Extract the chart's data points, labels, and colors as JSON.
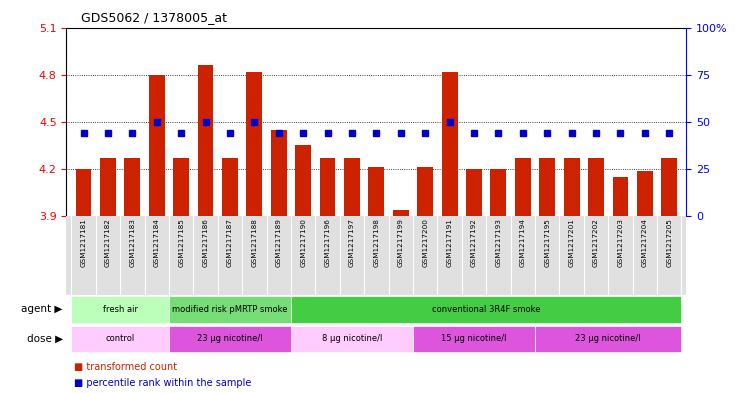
{
  "title": "GDS5062 / 1378005_at",
  "samples": [
    "GSM1217181",
    "GSM1217182",
    "GSM1217183",
    "GSM1217184",
    "GSM1217185",
    "GSM1217186",
    "GSM1217187",
    "GSM1217188",
    "GSM1217189",
    "GSM1217190",
    "GSM1217196",
    "GSM1217197",
    "GSM1217198",
    "GSM1217199",
    "GSM1217200",
    "GSM1217191",
    "GSM1217192",
    "GSM1217193",
    "GSM1217194",
    "GSM1217195",
    "GSM1217201",
    "GSM1217202",
    "GSM1217203",
    "GSM1217204",
    "GSM1217205"
  ],
  "bar_values": [
    4.2,
    4.27,
    4.27,
    4.8,
    4.27,
    4.86,
    4.27,
    4.82,
    4.45,
    4.35,
    4.27,
    4.27,
    4.21,
    3.94,
    4.21,
    4.82,
    4.2,
    4.2,
    4.27,
    4.27,
    4.27,
    4.27,
    4.15,
    4.19,
    4.27
  ],
  "percentile_values": [
    44,
    44,
    44,
    50,
    44,
    50,
    44,
    50,
    44,
    44,
    44,
    44,
    44,
    44,
    44,
    50,
    44,
    44,
    44,
    44,
    44,
    44,
    44,
    44,
    44
  ],
  "y_min": 3.9,
  "y_max": 5.1,
  "y_ticks": [
    3.9,
    4.2,
    4.5,
    4.8,
    5.1
  ],
  "y2_ticks": [
    0,
    25,
    50,
    75,
    100
  ],
  "bar_color": "#cc2200",
  "percentile_color": "#0000cc",
  "agent_regions": [
    {
      "label": "fresh air",
      "start": 0,
      "end": 4,
      "color": "#bbffbb"
    },
    {
      "label": "modified risk pMRTP smoke",
      "start": 4,
      "end": 9,
      "color": "#77dd77"
    },
    {
      "label": "conventional 3R4F smoke",
      "start": 9,
      "end": 25,
      "color": "#44cc44"
    }
  ],
  "dose_regions": [
    {
      "label": "control",
      "start": 0,
      "end": 4,
      "color": "#ffccff"
    },
    {
      "label": "23 μg nicotine/l",
      "start": 4,
      "end": 9,
      "color": "#dd55dd"
    },
    {
      "label": "8 μg nicotine/l",
      "start": 9,
      "end": 14,
      "color": "#ffccff"
    },
    {
      "label": "15 μg nicotine/l",
      "start": 14,
      "end": 19,
      "color": "#dd55dd"
    },
    {
      "label": "23 μg nicotine/l",
      "start": 19,
      "end": 25,
      "color": "#dd55dd"
    }
  ],
  "xlabel_agent": "agent",
  "xlabel_dose": "dose",
  "legend_items": [
    {
      "label": "transformed count",
      "color": "#cc2200"
    },
    {
      "label": "percentile rank within the sample",
      "color": "#0000cc"
    }
  ],
  "xlabels_bg": "#e0e0e0"
}
